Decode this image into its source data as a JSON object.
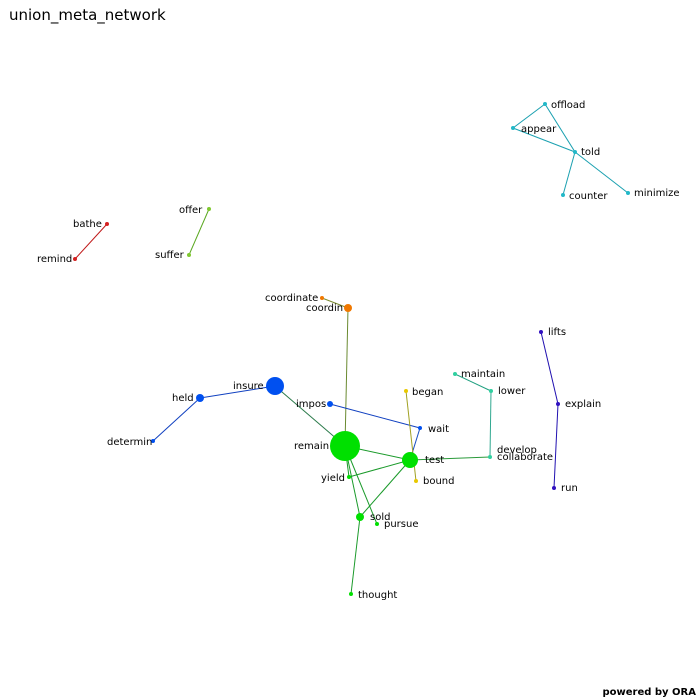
{
  "title": "union_meta_network",
  "credit": "powered by ORA",
  "colors": {
    "background": "#ffffff",
    "cyan": "#22b8c8",
    "red": "#d42020",
    "lime": "#7fc830",
    "orange": "#f07800",
    "blue": "#0050f0",
    "green": "#00e000",
    "yellow": "#e8c800",
    "teal": "#30d0a0",
    "purple": "#3010c0"
  },
  "network": {
    "nodes": [
      {
        "id": "offload",
        "label": "offload",
        "group": "cyan"
      },
      {
        "id": "appear",
        "label": "appear",
        "group": "cyan"
      },
      {
        "id": "told",
        "label": "told",
        "group": "cyan"
      },
      {
        "id": "counter",
        "label": "counter",
        "group": "cyan"
      },
      {
        "id": "minimize",
        "label": "minimize",
        "group": "cyan"
      },
      {
        "id": "bathe",
        "label": "bathe",
        "group": "red"
      },
      {
        "id": "remind",
        "label": "remind",
        "group": "red"
      },
      {
        "id": "offer",
        "label": "offer",
        "group": "lime"
      },
      {
        "id": "suffer",
        "label": "suffer",
        "group": "lime"
      },
      {
        "id": "coordinate",
        "label": "coordinate",
        "group": "orange"
      },
      {
        "id": "coordin",
        "label": "coordin",
        "group": "orange"
      },
      {
        "id": "insure",
        "label": "insure",
        "group": "blue"
      },
      {
        "id": "held",
        "label": "held",
        "group": "blue"
      },
      {
        "id": "determin",
        "label": "determin",
        "group": "blue"
      },
      {
        "id": "impos",
        "label": "impos",
        "group": "blue"
      },
      {
        "id": "wait",
        "label": "wait",
        "group": "blue"
      },
      {
        "id": "remain",
        "label": "remain",
        "group": "green"
      },
      {
        "id": "test",
        "label": "test",
        "group": "green"
      },
      {
        "id": "yield",
        "label": "yield",
        "group": "green"
      },
      {
        "id": "sold",
        "label": "sold",
        "group": "green"
      },
      {
        "id": "pursue",
        "label": "pursue",
        "group": "green"
      },
      {
        "id": "thought",
        "label": "thought",
        "group": "green"
      },
      {
        "id": "began",
        "label": "began",
        "group": "yellow"
      },
      {
        "id": "bound",
        "label": "bound",
        "group": "yellow"
      },
      {
        "id": "maintain",
        "label": "maintain",
        "group": "teal"
      },
      {
        "id": "lower",
        "label": "lower",
        "group": "teal"
      },
      {
        "id": "collaborate",
        "label": "collaborate",
        "group": "teal"
      },
      {
        "id": "lifts",
        "label": "lifts",
        "group": "purple"
      },
      {
        "id": "explain",
        "label": "explain",
        "group": "purple"
      },
      {
        "id": "develop",
        "label": "develop",
        "group": "purple"
      },
      {
        "id": "run",
        "label": "run",
        "group": "purple"
      }
    ],
    "edges": [
      {
        "source": "offload",
        "target": "appear"
      },
      {
        "source": "offload",
        "target": "told"
      },
      {
        "source": "appear",
        "target": "told"
      },
      {
        "source": "told",
        "target": "counter"
      },
      {
        "source": "told",
        "target": "minimize"
      },
      {
        "source": "bathe",
        "target": "remind"
      },
      {
        "source": "offer",
        "target": "suffer"
      },
      {
        "source": "coordinate",
        "target": "coordin"
      },
      {
        "source": "coordin",
        "target": "remain"
      },
      {
        "source": "insure",
        "target": "held"
      },
      {
        "source": "held",
        "target": "determin"
      },
      {
        "source": "insure",
        "target": "remain"
      },
      {
        "source": "impos",
        "target": "wait"
      },
      {
        "source": "wait",
        "target": "test"
      },
      {
        "source": "remain",
        "target": "test"
      },
      {
        "source": "remain",
        "target": "yield"
      },
      {
        "source": "remain",
        "target": "sold"
      },
      {
        "source": "remain",
        "target": "pursue"
      },
      {
        "source": "test",
        "target": "yield"
      },
      {
        "source": "test",
        "target": "sold"
      },
      {
        "source": "sold",
        "target": "thought"
      },
      {
        "source": "test",
        "target": "collaborate"
      },
      {
        "source": "began",
        "target": "bound"
      },
      {
        "source": "maintain",
        "target": "lower"
      },
      {
        "source": "lower",
        "target": "collaborate"
      },
      {
        "source": "lifts",
        "target": "explain"
      },
      {
        "source": "explain",
        "target": "run"
      }
    ]
  }
}
